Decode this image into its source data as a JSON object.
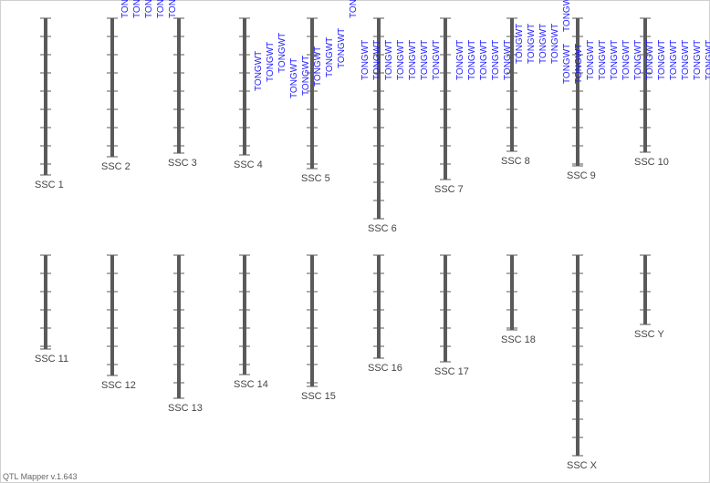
{
  "chromosomes": [
    {
      "name": "SSC 1",
      "qtls": []
    },
    {
      "name": "SSC 2",
      "qtls": [
        "TONGWT",
        "TONGWT",
        "TONGWT",
        "TONGWT"
      ]
    },
    {
      "name": "SSC 3",
      "qtls": [
        "TONGWT"
      ]
    },
    {
      "name": "SSC 4",
      "qtls": [
        "TONGWT",
        "TONGWT",
        "TONGWT",
        "TONGWT"
      ]
    },
    {
      "name": "SSC 5",
      "qtls": [
        "TONGWT",
        "TONGWT",
        "TONGWT",
        "TONGWT",
        "TONGWT"
      ]
    },
    {
      "name": "SSC 6",
      "qtls": [
        "TONGWT",
        "TONGWT",
        "TONGWT",
        "TONGWT",
        "TONGWT",
        "TONGWT",
        "TONGWT"
      ]
    },
    {
      "name": "SSC 7",
      "qtls": [
        "TONGWT",
        "TONGWT",
        "TONGWT",
        "TONGWT",
        "TONGWT"
      ]
    },
    {
      "name": "SSC 8",
      "qtls": [
        "TONGWT",
        "TONGWT",
        "TONGWT",
        "TONGWT",
        "TONGWT"
      ]
    },
    {
      "name": "SSC 9",
      "qtls": [
        "TONGWT",
        "TONGWT",
        "TONGWT",
        "TONGWT",
        "TONGWT",
        "TONGWT"
      ]
    },
    {
      "name": "SSC 10",
      "qtls": [
        "TONGWT",
        "TONGWT",
        "TONGWT",
        "TONGWT",
        "TONGWT",
        "TONGWT",
        "TONGWT"
      ]
    },
    {
      "name": "SSC 11",
      "qtls": []
    },
    {
      "name": "SSC 12",
      "qtls": []
    },
    {
      "name": "SSC 13",
      "qtls": []
    },
    {
      "name": "SSC 14",
      "qtls": []
    },
    {
      "name": "SSC 15",
      "qtls": []
    },
    {
      "name": "SSC 16",
      "qtls": []
    },
    {
      "name": "SSC 17",
      "qtls": []
    },
    {
      "name": "SSC 18",
      "qtls": []
    },
    {
      "name": "SSC X",
      "qtls": []
    },
    {
      "name": "SSC Y",
      "qtls": []
    }
  ],
  "footer": "QTL Mapper v.1.643"
}
